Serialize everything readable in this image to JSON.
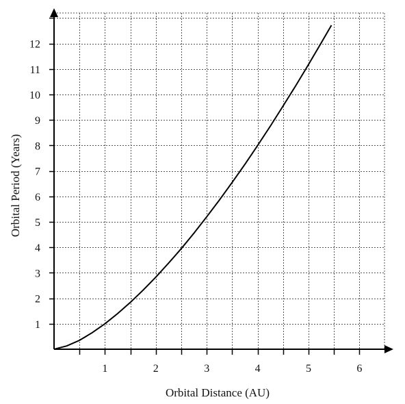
{
  "chart_data": {
    "type": "line",
    "title": "",
    "xlabel": "Orbital Distance (AU)",
    "ylabel": "Orbital Period (Years)",
    "x_ticks": [
      "1",
      "2",
      "3",
      "4",
      "5",
      "6"
    ],
    "y_ticks": [
      "1",
      "2",
      "3",
      "4",
      "5",
      "6",
      "7",
      "8",
      "9",
      "10",
      "11",
      "12"
    ],
    "xlim": [
      0,
      6.5
    ],
    "ylim": [
      0,
      13
    ],
    "grid": true,
    "grid_step": {
      "x": 0.5,
      "y": 1
    },
    "series": [
      {
        "relation": "T = a^1.5",
        "x": [
          0,
          0.25,
          0.5,
          0.75,
          1,
          1.25,
          1.5,
          1.75,
          2,
          2.25,
          2.5,
          2.75,
          3,
          3.25,
          3.5,
          3.75,
          4,
          4.25,
          4.5,
          4.75,
          5,
          5.25,
          5.45
        ],
        "y": [
          0,
          0.13,
          0.35,
          0.65,
          1,
          1.4,
          1.84,
          2.32,
          2.83,
          3.38,
          3.95,
          4.56,
          5.2,
          5.86,
          6.55,
          7.26,
          8,
          8.76,
          9.55,
          10.35,
          11.18,
          12.03,
          12.72
        ]
      }
    ],
    "colors": {
      "curve": "#000000",
      "grid": "#555555",
      "axis": "#000000"
    }
  }
}
